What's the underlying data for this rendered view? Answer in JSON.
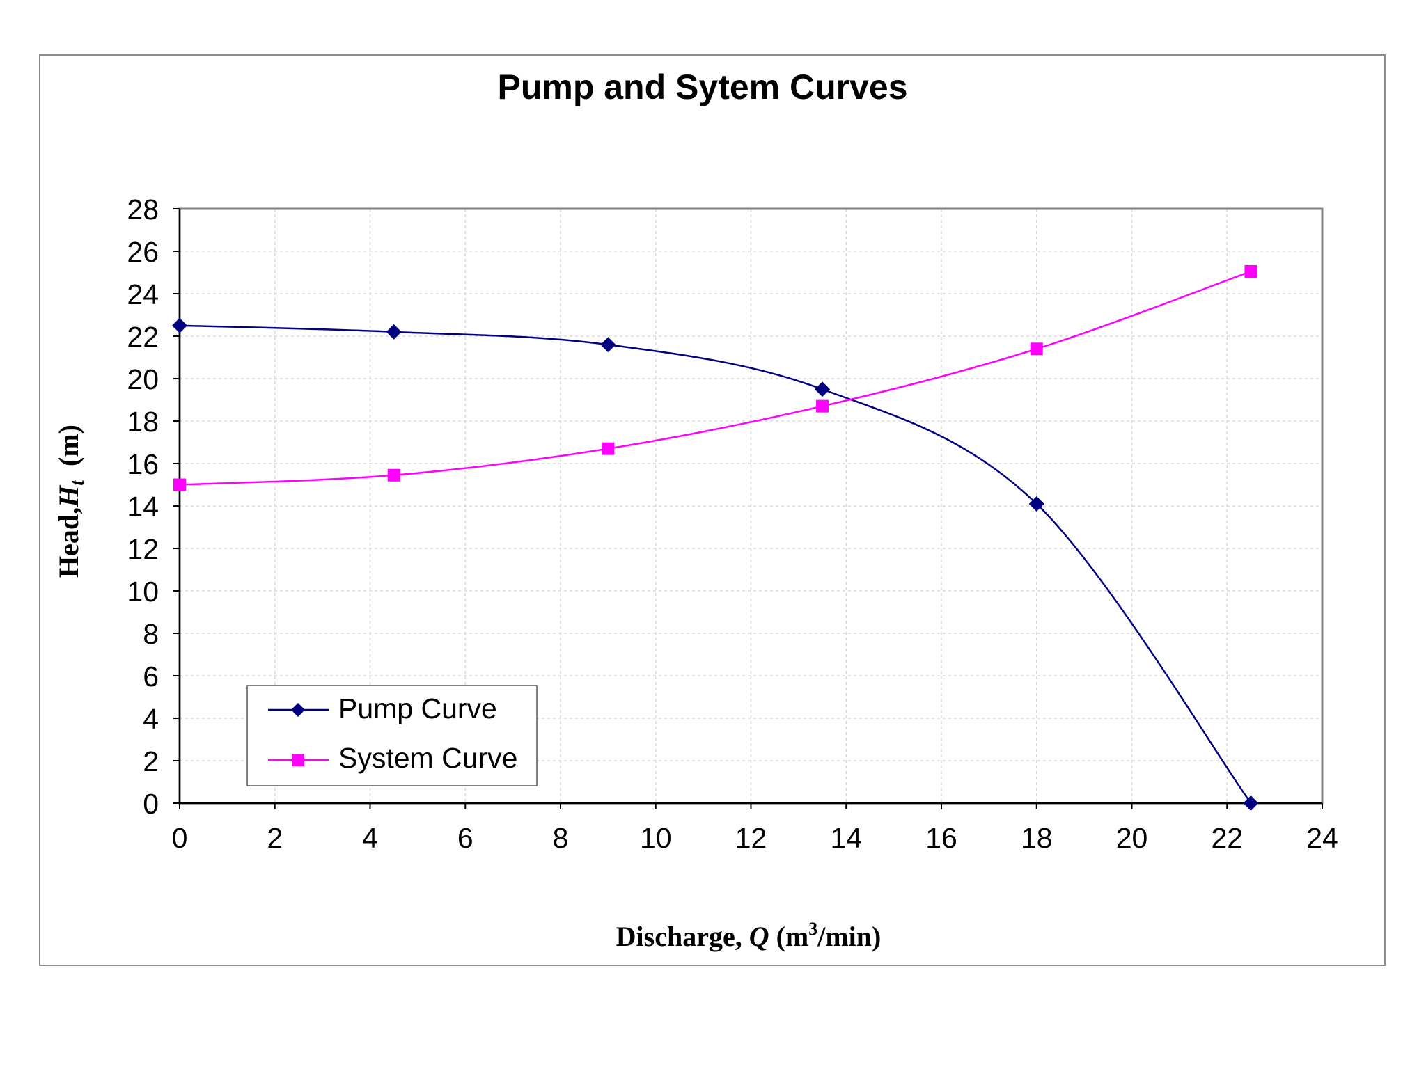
{
  "chart_data": {
    "type": "line",
    "title": "Pump and Sytem Curves",
    "xlabel": {
      "prefix": "Discharge, ",
      "var": "Q",
      "unit_pre": " (m",
      "sup": "3",
      "unit_post": "/min)"
    },
    "ylabel": {
      "prefix": "Head,",
      "var": "H",
      "sub": "t",
      "unit": "  (m)"
    },
    "xlim": [
      0,
      24
    ],
    "ylim": [
      0,
      28
    ],
    "xticks": [
      "0",
      "2",
      "4",
      "6",
      "8",
      "10",
      "12",
      "14",
      "16",
      "18",
      "20",
      "22",
      "24"
    ],
    "yticks": [
      "0",
      "2",
      "4",
      "6",
      "8",
      "10",
      "12",
      "14",
      "16",
      "18",
      "20",
      "22",
      "24",
      "26",
      "28"
    ],
    "grid": true,
    "legend_position": "bottom-left",
    "series": [
      {
        "name": "Pump Curve",
        "color": "#000080",
        "marker": "diamond",
        "points": [
          [
            0,
            22.5
          ],
          [
            4.5,
            22.2
          ],
          [
            9,
            21.6
          ],
          [
            13.5,
            19.5
          ],
          [
            18,
            14.1
          ],
          [
            22.5,
            0
          ]
        ]
      },
      {
        "name": "System Curve",
        "color": "#ff00ff",
        "marker": "square",
        "points": [
          [
            0,
            15.0
          ],
          [
            4.5,
            15.45
          ],
          [
            9,
            16.7
          ],
          [
            13.5,
            18.7
          ],
          [
            18,
            21.4
          ],
          [
            22.5,
            25.05
          ]
        ]
      }
    ]
  }
}
